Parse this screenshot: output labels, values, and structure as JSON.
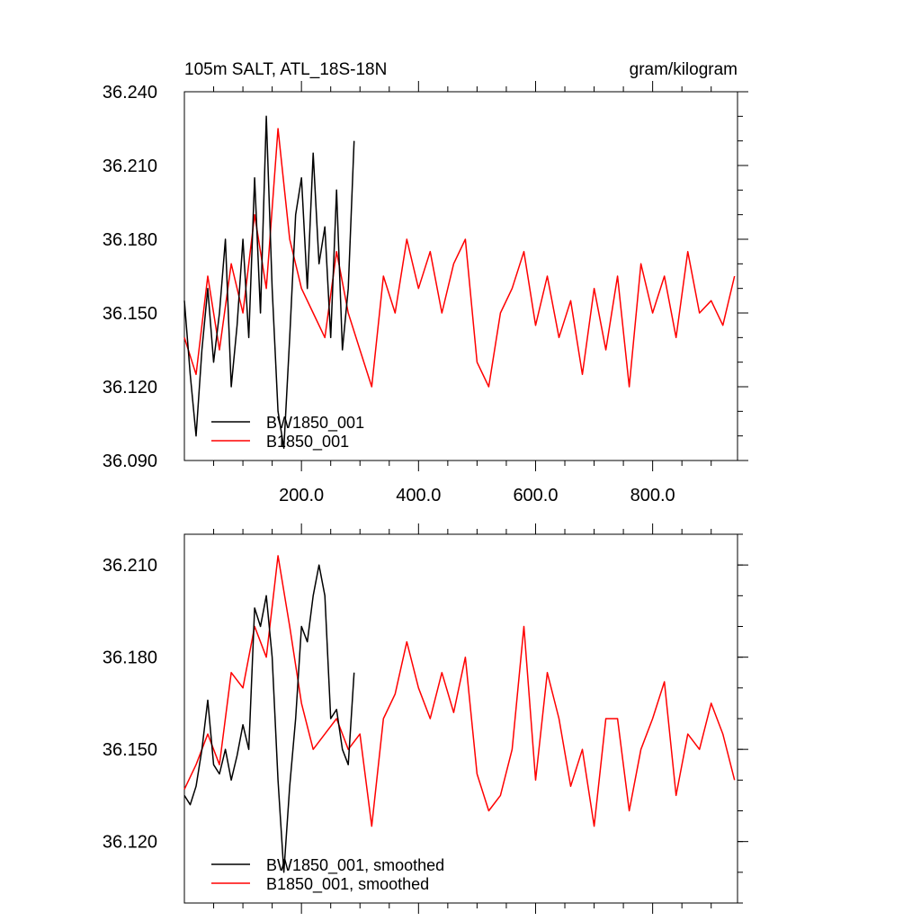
{
  "chart_data": [
    {
      "type": "line",
      "title_left": "105m SALT, ATL_18S-18N",
      "title_right": "gram/kilogram",
      "xlim": [
        0,
        945
      ],
      "ylim": [
        36.09,
        36.24
      ],
      "x_ticks": [
        200,
        400,
        600,
        800
      ],
      "x_tick_labels": [
        "200.0",
        "400.0",
        "600.0",
        "800.0"
      ],
      "y_ticks": [
        36.09,
        36.12,
        36.15,
        36.18,
        36.21,
        36.24
      ],
      "y_tick_labels": [
        "36.090",
        "36.120",
        "36.150",
        "36.180",
        "36.210",
        "36.240"
      ],
      "legend_position": "bottom-left",
      "series": [
        {
          "name": "BW1850_001",
          "color": "#000000",
          "x": [
            0,
            10,
            20,
            30,
            40,
            50,
            60,
            70,
            80,
            90,
            100,
            110,
            120,
            130,
            140,
            150,
            160,
            170,
            180,
            190,
            200,
            210,
            220,
            230,
            240,
            250,
            260,
            270,
            280,
            290
          ],
          "values": [
            36.155,
            36.125,
            36.1,
            36.135,
            36.16,
            36.13,
            36.15,
            36.18,
            36.12,
            36.145,
            36.18,
            36.14,
            36.205,
            36.15,
            36.23,
            36.16,
            36.11,
            36.095,
            36.14,
            36.19,
            36.205,
            36.16,
            36.215,
            36.17,
            36.185,
            36.14,
            36.2,
            36.135,
            36.16,
            36.22
          ]
        },
        {
          "name": "B1850_001",
          "color": "#ff0000",
          "x": [
            0,
            20,
            40,
            60,
            80,
            100,
            120,
            140,
            160,
            180,
            200,
            220,
            240,
            260,
            280,
            300,
            320,
            340,
            360,
            380,
            400,
            420,
            440,
            460,
            480,
            500,
            520,
            540,
            560,
            580,
            600,
            620,
            640,
            660,
            680,
            700,
            720,
            740,
            760,
            780,
            800,
            820,
            840,
            860,
            880,
            900,
            920,
            940
          ],
          "values": [
            36.14,
            36.125,
            36.165,
            36.135,
            36.17,
            36.15,
            36.19,
            36.16,
            36.225,
            36.18,
            36.16,
            36.15,
            36.14,
            36.175,
            36.15,
            36.135,
            36.12,
            36.165,
            36.15,
            36.18,
            36.16,
            36.175,
            36.15,
            36.17,
            36.18,
            36.13,
            36.12,
            36.15,
            36.16,
            36.175,
            36.145,
            36.165,
            36.14,
            36.155,
            36.125,
            36.16,
            36.135,
            36.165,
            36.12,
            36.17,
            36.15,
            36.165,
            36.14,
            36.175,
            36.15,
            36.155,
            36.145,
            36.165
          ]
        }
      ]
    },
    {
      "type": "line",
      "xlim": [
        0,
        945
      ],
      "ylim": [
        36.1,
        36.22
      ],
      "y_ticks": [
        36.12,
        36.15,
        36.18,
        36.21
      ],
      "y_tick_labels": [
        "36.120",
        "36.150",
        "36.180",
        "36.210"
      ],
      "legend_position": "bottom-left",
      "series": [
        {
          "name": "BW1850_001, smoothed",
          "color": "#000000",
          "x": [
            0,
            10,
            20,
            30,
            40,
            50,
            60,
            70,
            80,
            90,
            100,
            110,
            120,
            130,
            140,
            150,
            160,
            170,
            180,
            190,
            200,
            210,
            220,
            230,
            240,
            250,
            260,
            270,
            280,
            290
          ],
          "values": [
            36.135,
            36.132,
            36.138,
            36.15,
            36.166,
            36.145,
            36.142,
            36.15,
            36.14,
            36.148,
            36.158,
            36.15,
            36.196,
            36.19,
            36.2,
            36.18,
            36.14,
            36.11,
            36.138,
            36.16,
            36.19,
            36.185,
            36.2,
            36.21,
            36.2,
            36.16,
            36.163,
            36.15,
            36.145,
            36.175
          ]
        },
        {
          "name": "B1850_001, smoothed",
          "color": "#ff0000",
          "x": [
            0,
            20,
            40,
            60,
            80,
            100,
            120,
            140,
            160,
            180,
            200,
            220,
            240,
            260,
            280,
            300,
            320,
            340,
            360,
            380,
            400,
            420,
            440,
            460,
            480,
            500,
            520,
            540,
            560,
            580,
            600,
            620,
            640,
            660,
            680,
            700,
            720,
            740,
            760,
            780,
            800,
            820,
            840,
            860,
            880,
            900,
            920,
            940
          ],
          "values": [
            36.137,
            36.145,
            36.155,
            36.145,
            36.175,
            36.17,
            36.19,
            36.18,
            36.213,
            36.19,
            36.165,
            36.15,
            36.155,
            36.16,
            36.15,
            36.155,
            36.125,
            36.16,
            36.168,
            36.185,
            36.17,
            36.16,
            36.175,
            36.162,
            36.18,
            36.142,
            36.13,
            36.135,
            36.15,
            36.19,
            36.14,
            36.175,
            36.16,
            36.138,
            36.15,
            36.125,
            36.16,
            36.16,
            36.13,
            36.15,
            36.16,
            36.172,
            36.135,
            36.155,
            36.15,
            36.165,
            36.155,
            36.14
          ]
        }
      ]
    }
  ]
}
